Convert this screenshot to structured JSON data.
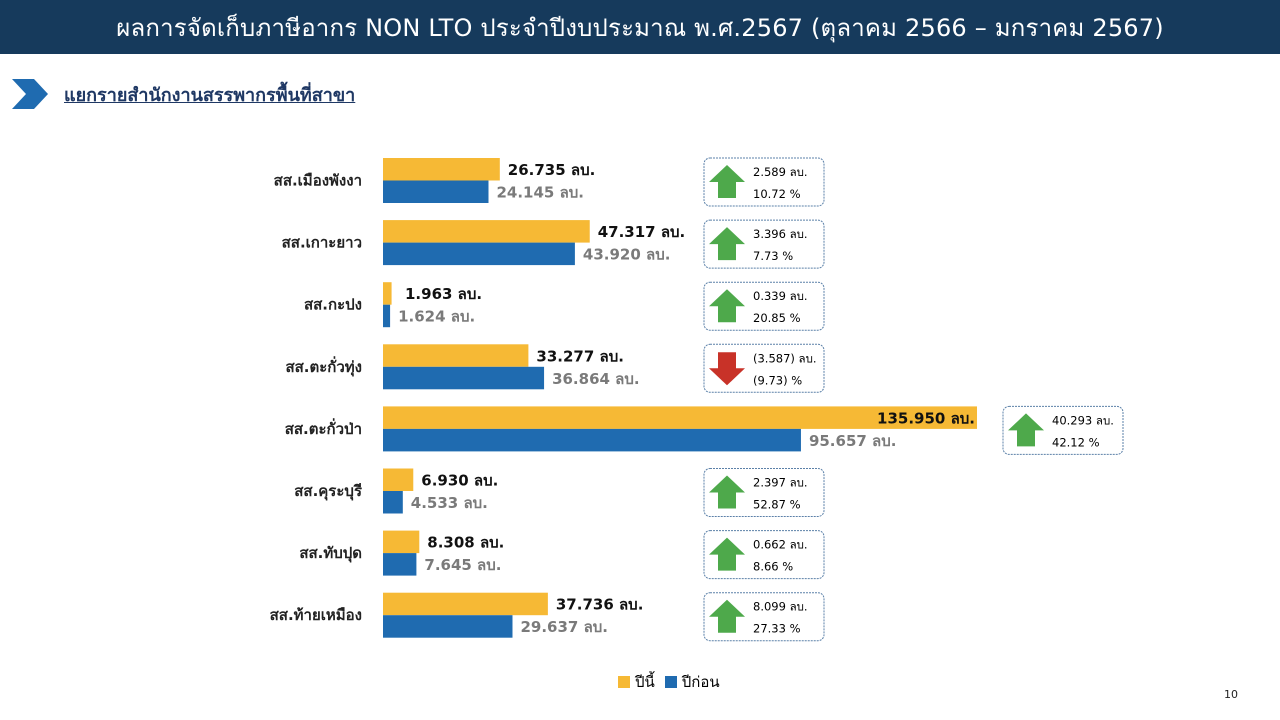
{
  "title": "ผลการจัดเก็บภาษีอากร NON LTO ประจำปีงบประมาณ พ.ศ.2567 (ตุลาคม 2566 – มกราคม 2567)",
  "subtitle": "แยกรายสำนักงานสรรพากรพื้นที่สาขา",
  "page_number": "10",
  "colors": {
    "header_bg": "#163a5c",
    "current_year": "#f6b935",
    "previous_year": "#1f6bb0",
    "up_arrow": "#4ea94b",
    "down_arrow": "#c83228",
    "box_border": "#5b80a8"
  },
  "legend": {
    "current": "ปีนี้",
    "previous": "ปีก่อน"
  },
  "chart_data": {
    "type": "bar",
    "orientation": "horizontal",
    "categories": [
      "สส.เมืองพังงา",
      "สส.เกาะยาว",
      "สส.กะปง",
      "สส.ตะกั่วทุ่ง",
      "สส.ตะกั่วป่า",
      "สส.คุระบุรี",
      "สส.ทับปุด",
      "สส.ท้ายเหมือง"
    ],
    "series": [
      {
        "name": "ปีนี้",
        "values": [
          26.735,
          47.317,
          1.963,
          33.277,
          135.95,
          6.93,
          8.308,
          37.736
        ],
        "labels": [
          "26.735 ลบ.",
          "47.317 ลบ.",
          "1.963 ลบ.",
          "33.277 ลบ.",
          "135.950 ลบ.",
          "6.930 ลบ.",
          "8.308 ลบ.",
          "37.736 ลบ."
        ]
      },
      {
        "name": "ปีก่อน",
        "values": [
          24.145,
          43.92,
          1.624,
          36.864,
          95.657,
          4.533,
          7.645,
          29.637
        ],
        "labels": [
          "24.145 ลบ.",
          "43.920 ลบ.",
          "1.624 ลบ.",
          "36.864 ลบ.",
          "95.657 ลบ.",
          "4.533 ลบ.",
          "7.645 ลบ.",
          "29.637 ลบ."
        ]
      }
    ],
    "changes": [
      {
        "direction": "up",
        "amount": "2.589 ลบ.",
        "percent": "10.72 %"
      },
      {
        "direction": "up",
        "amount": "3.396 ลบ.",
        "percent": "7.73 %"
      },
      {
        "direction": "up",
        "amount": "0.339 ลบ.",
        "percent": "20.85 %"
      },
      {
        "direction": "down",
        "amount": "(3.587) ลบ.",
        "percent": "(9.73) %"
      },
      {
        "direction": "up",
        "amount": "40.293 ลบ.",
        "percent": "42.12 %"
      },
      {
        "direction": "up",
        "amount": "2.397 ลบ.",
        "percent": "52.87 %"
      },
      {
        "direction": "up",
        "amount": "0.662 ลบ.",
        "percent": "8.66 %"
      },
      {
        "direction": "up",
        "amount": "8.099 ลบ.",
        "percent": "27.33 %"
      }
    ],
    "xlim": [
      0,
      135.95
    ],
    "grid": false,
    "legend_position": "bottom"
  }
}
